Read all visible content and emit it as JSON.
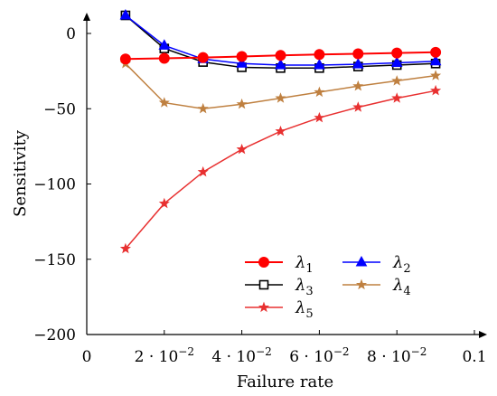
{
  "chart_data": {
    "type": "line",
    "title": "",
    "xlabel": "Failure rate",
    "ylabel": "Sensitivity",
    "xlim": [
      0,
      0.1
    ],
    "ylim": [
      -200,
      15
    ],
    "grid": false,
    "legend_placement": "lower-right",
    "x_ticks": [
      {
        "value": 0,
        "label": "0"
      },
      {
        "value": 0.02,
        "label": "2 · 10",
        "exp": "−2"
      },
      {
        "value": 0.04,
        "label": "4 · 10",
        "exp": "−2"
      },
      {
        "value": 0.06,
        "label": "6 · 10",
        "exp": "−2"
      },
      {
        "value": 0.08,
        "label": "8 · 10",
        "exp": "−2"
      },
      {
        "value": 0.1,
        "label": "0.1"
      }
    ],
    "y_ticks": [
      {
        "value": 0,
        "label": "0"
      },
      {
        "value": -50,
        "label": "−50"
      },
      {
        "value": -100,
        "label": "−100"
      },
      {
        "value": -150,
        "label": "−150"
      },
      {
        "value": -200,
        "label": "−200"
      }
    ],
    "x": [
      0.01,
      0.02,
      0.03,
      0.04,
      0.05,
      0.06,
      0.07,
      0.08,
      0.09
    ],
    "series": [
      {
        "name": "λ",
        "sub": "1",
        "color": "#ff0000",
        "marker": "circle",
        "values": [
          -17,
          -16.5,
          -16,
          -15.3,
          -14.6,
          -14,
          -13.5,
          -13,
          -12.5
        ]
      },
      {
        "name": "λ",
        "sub": "2",
        "color": "#0000ff",
        "marker": "triangle",
        "values": [
          12,
          -8,
          -17,
          -20,
          -21,
          -21,
          -20.5,
          -19.5,
          -18.5
        ]
      },
      {
        "name": "λ",
        "sub": "3",
        "color": "#000000",
        "marker": "square",
        "values": [
          12,
          -10,
          -19,
          -22.5,
          -23,
          -23,
          -22,
          -21,
          -20
        ]
      },
      {
        "name": "λ",
        "sub": "4",
        "color": "#bf8040",
        "marker": "star",
        "values": [
          -20,
          -46,
          -50,
          -47,
          -43,
          -39,
          -35,
          -31.5,
          -28
        ]
      },
      {
        "name": "λ",
        "sub": "5",
        "color": "#e83030",
        "marker": "star",
        "values": [
          -143,
          -113,
          -92,
          -77,
          -65,
          -56,
          -49,
          -43,
          -38
        ]
      }
    ]
  }
}
